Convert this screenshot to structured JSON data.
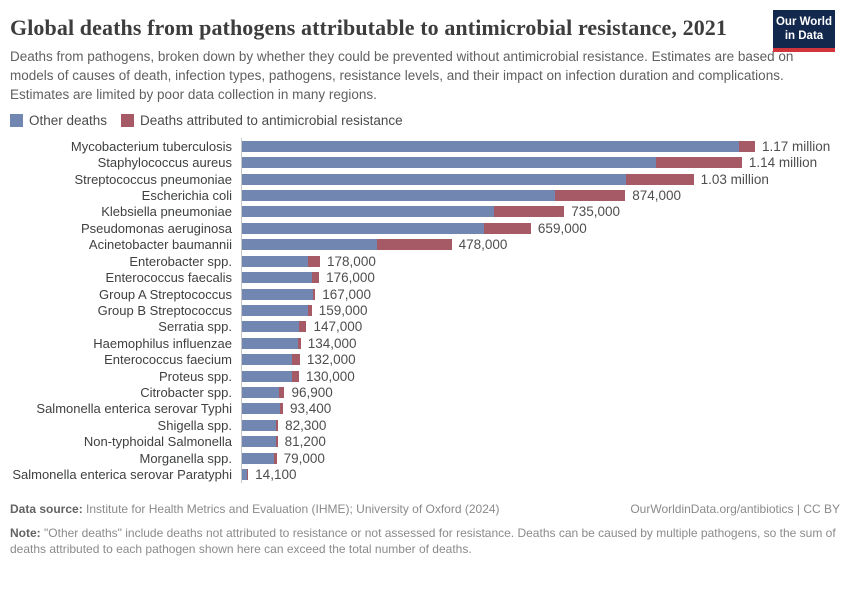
{
  "header": {
    "title": "Global deaths from pathogens attributable to antimicrobial resistance, 2021",
    "subtitle": "Deaths from pathogens, broken down by whether they could be prevented without antimicrobial resistance. Estimates are based on models of causes of death, infection types, pathogens, resistance levels, and their impact on infection duration and complications. Estimates are limited by poor data collection in many regions.",
    "logo": {
      "line1": "Our World",
      "line2": "in Data"
    }
  },
  "legend": [
    {
      "label": "Other deaths",
      "color": "#7286b2"
    },
    {
      "label": "Deaths attributed to antimicrobial resistance",
      "color": "#a55a66"
    }
  ],
  "chart_data": {
    "type": "bar",
    "orientation": "horizontal",
    "stacked": true,
    "title": "Global deaths from pathogens attributable to antimicrobial resistance, 2021",
    "xlabel": "",
    "ylabel": "",
    "x_max": 1170000,
    "grid": false,
    "legend_position": "top",
    "series_names": [
      "Other deaths",
      "Deaths attributed to antimicrobial resistance"
    ],
    "rows": [
      {
        "pathogen": "Mycobacterium tuberculosis",
        "total": 1170000,
        "amr": 36000,
        "other": 1134000,
        "value_label": "1.17 million"
      },
      {
        "pathogen": "Staphylococcus aureus",
        "total": 1140000,
        "amr": 195000,
        "other": 945000,
        "value_label": "1.14 million"
      },
      {
        "pathogen": "Streptococcus pneumoniae",
        "total": 1030000,
        "amr": 155000,
        "other": 875000,
        "value_label": "1.03 million"
      },
      {
        "pathogen": "Escherichia coli",
        "total": 874000,
        "amr": 160000,
        "other": 714000,
        "value_label": "874,000"
      },
      {
        "pathogen": "Klebsiella pneumoniae",
        "total": 735000,
        "amr": 160000,
        "other": 575000,
        "value_label": "735,000"
      },
      {
        "pathogen": "Pseudomonas aeruginosa",
        "total": 659000,
        "amr": 107000,
        "other": 552000,
        "value_label": "659,000"
      },
      {
        "pathogen": "Acinetobacter baumannii",
        "total": 478000,
        "amr": 169000,
        "other": 309000,
        "value_label": "478,000"
      },
      {
        "pathogen": "Enterobacter spp.",
        "total": 178000,
        "amr": 27000,
        "other": 151000,
        "value_label": "178,000"
      },
      {
        "pathogen": "Enterococcus faecalis",
        "total": 176000,
        "amr": 16000,
        "other": 160000,
        "value_label": "176,000"
      },
      {
        "pathogen": "Group A Streptococcus",
        "total": 167000,
        "amr": 5000,
        "other": 162000,
        "value_label": "167,000"
      },
      {
        "pathogen": "Group B Streptococcus",
        "total": 159000,
        "amr": 9000,
        "other": 150000,
        "value_label": "159,000"
      },
      {
        "pathogen": "Serratia spp.",
        "total": 147000,
        "amr": 16000,
        "other": 131000,
        "value_label": "147,000"
      },
      {
        "pathogen": "Haemophilus influenzae",
        "total": 134000,
        "amr": 7000,
        "other": 127000,
        "value_label": "134,000"
      },
      {
        "pathogen": "Enterococcus faecium",
        "total": 132000,
        "amr": 18000,
        "other": 114000,
        "value_label": "132,000"
      },
      {
        "pathogen": "Proteus spp.",
        "total": 130000,
        "amr": 16000,
        "other": 114000,
        "value_label": "130,000"
      },
      {
        "pathogen": "Citrobacter spp.",
        "total": 96900,
        "amr": 13000,
        "other": 83900,
        "value_label": "96,900"
      },
      {
        "pathogen": "Salmonella enterica serovar Typhi",
        "total": 93400,
        "amr": 7000,
        "other": 86400,
        "value_label": "93,400"
      },
      {
        "pathogen": "Shigella spp.",
        "total": 82300,
        "amr": 5000,
        "other": 77300,
        "value_label": "82,300"
      },
      {
        "pathogen": "Non-typhoidal Salmonella",
        "total": 81200,
        "amr": 4000,
        "other": 77200,
        "value_label": "81,200"
      },
      {
        "pathogen": "Morganella spp.",
        "total": 79000,
        "amr": 7000,
        "other": 72000,
        "value_label": "79,000"
      },
      {
        "pathogen": "Salmonella enterica serovar Paratyphi",
        "total": 14100,
        "amr": 1500,
        "other": 12600,
        "value_label": "14,100"
      }
    ]
  },
  "footer": {
    "source_label": "Data source:",
    "source_text": "Institute for Health Metrics and Evaluation (IHME); University of Oxford (2024)",
    "link": "OurWorldinData.org/antibiotics | CC BY",
    "note_label": "Note:",
    "note_text": "\"Other deaths\" include deaths not attributed to resistance or not assessed for resistance. Deaths can be caused by multiple pathogens, so the sum of deaths attributed to each pathogen shown here can exceed the total number of deaths."
  }
}
